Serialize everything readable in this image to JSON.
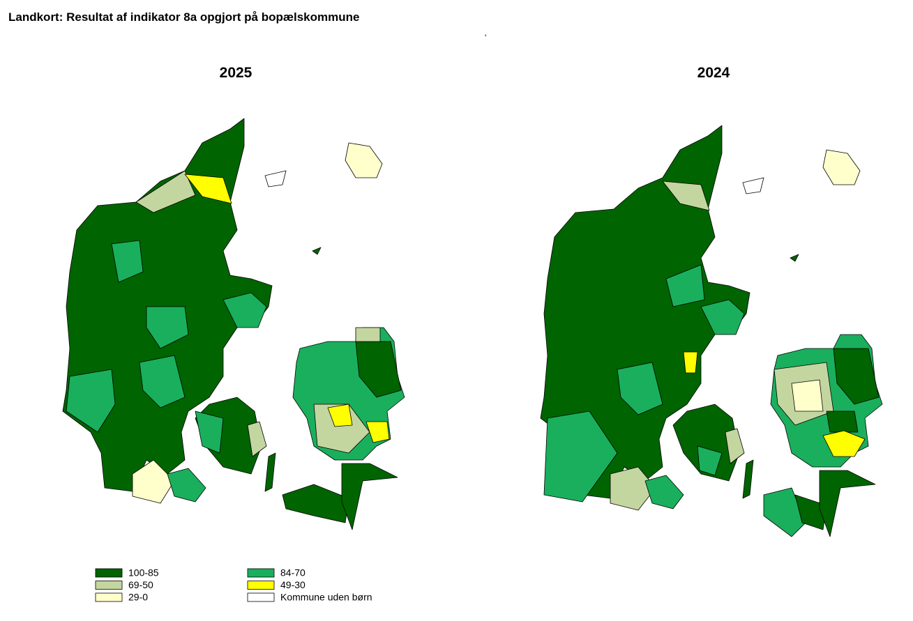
{
  "header": {
    "title": "Landkort: Resultat af indikator 8a opgjort på bopælskommune"
  },
  "maps": [
    {
      "title": "2025"
    },
    {
      "title": "2024"
    }
  ],
  "legend": [
    {
      "label": "100-85",
      "color": "#006400"
    },
    {
      "label": "84-70",
      "color": "#1aaf5d"
    },
    {
      "label": "69-50",
      "color": "#c4d6a0"
    },
    {
      "label": "49-30",
      "color": "#ffff00"
    },
    {
      "label": "29-0",
      "color": "#ffffcc"
    },
    {
      "label": "Kommune uden børn",
      "color": "#ffffff"
    }
  ]
}
